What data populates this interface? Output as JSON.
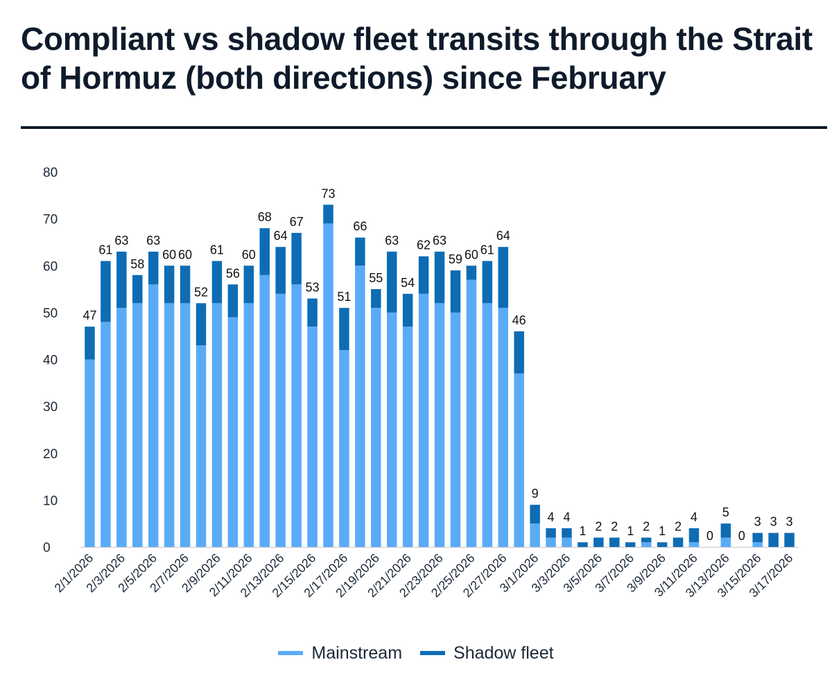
{
  "chart_data": {
    "type": "bar",
    "stacked": true,
    "title": "Compliant vs shadow fleet transits through the Strait of Hormuz (both directions) since February",
    "xlabel": "",
    "ylabel": "",
    "ylim": [
      0,
      80
    ],
    "yticks": [
      0,
      10,
      20,
      30,
      40,
      50,
      60,
      70,
      80
    ],
    "legend_position": "bottom",
    "categories": [
      "2/1/2026",
      "2/2/2026",
      "2/3/2026",
      "2/4/2026",
      "2/5/2026",
      "2/6/2026",
      "2/7/2026",
      "2/8/2026",
      "2/9/2026",
      "2/10/2026",
      "2/11/2026",
      "2/12/2026",
      "2/13/2026",
      "2/14/2026",
      "2/15/2026",
      "2/16/2026",
      "2/17/2026",
      "2/18/2026",
      "2/19/2026",
      "2/20/2026",
      "2/21/2026",
      "2/22/2026",
      "2/23/2026",
      "2/24/2026",
      "2/25/2026",
      "2/26/2026",
      "2/27/2026",
      "2/28/2026",
      "3/1/2026",
      "3/2/2026",
      "3/3/2026",
      "3/4/2026",
      "3/5/2026",
      "3/6/2026",
      "3/7/2026",
      "3/8/2026",
      "3/9/2026",
      "3/10/2026",
      "3/11/2026",
      "3/12/2026",
      "3/13/2026",
      "3/14/2026",
      "3/15/2026",
      "3/16/2026",
      "3/17/2026"
    ],
    "tick_labels": [
      "2/1/2026",
      "2/3/2026",
      "2/5/2026",
      "2/7/2026",
      "2/9/2026",
      "2/11/2026",
      "2/13/2026",
      "2/15/2026",
      "2/17/2026",
      "2/19/2026",
      "2/21/2026",
      "2/23/2026",
      "2/25/2026",
      "2/27/2026",
      "3/1/2026",
      "3/3/2026",
      "3/5/2026",
      "3/7/2026",
      "3/9/2026",
      "3/11/2026",
      "3/13/2026",
      "3/15/2026",
      "3/17/2026"
    ],
    "series": [
      {
        "name": "Mainstream",
        "color": "#5aabf7",
        "values": [
          40,
          48,
          51,
          52,
          56,
          52,
          52,
          43,
          52,
          49,
          52,
          58,
          54,
          56,
          47,
          69,
          42,
          60,
          51,
          50,
          47,
          54,
          52,
          50,
          57,
          52,
          51,
          37,
          5,
          2,
          2,
          0,
          0,
          0,
          0,
          1,
          0,
          0,
          1,
          0,
          2,
          0,
          1,
          0,
          0
        ]
      },
      {
        "name": "Shadow fleet",
        "color": "#0e6cb4",
        "values": [
          7,
          13,
          12,
          6,
          7,
          8,
          8,
          9,
          9,
          7,
          8,
          10,
          10,
          11,
          6,
          4,
          9,
          6,
          4,
          13,
          7,
          8,
          11,
          9,
          3,
          9,
          13,
          9,
          4,
          2,
          2,
          1,
          2,
          2,
          1,
          1,
          1,
          2,
          3,
          0,
          3,
          0,
          2,
          3,
          3
        ]
      }
    ],
    "totals": [
      47,
      61,
      63,
      58,
      63,
      60,
      60,
      52,
      61,
      56,
      60,
      68,
      64,
      67,
      53,
      73,
      51,
      66,
      55,
      63,
      54,
      62,
      63,
      59,
      60,
      61,
      64,
      46,
      9,
      4,
      4,
      1,
      2,
      2,
      1,
      2,
      1,
      2,
      4,
      0,
      5,
      0,
      3,
      3,
      3
    ]
  }
}
